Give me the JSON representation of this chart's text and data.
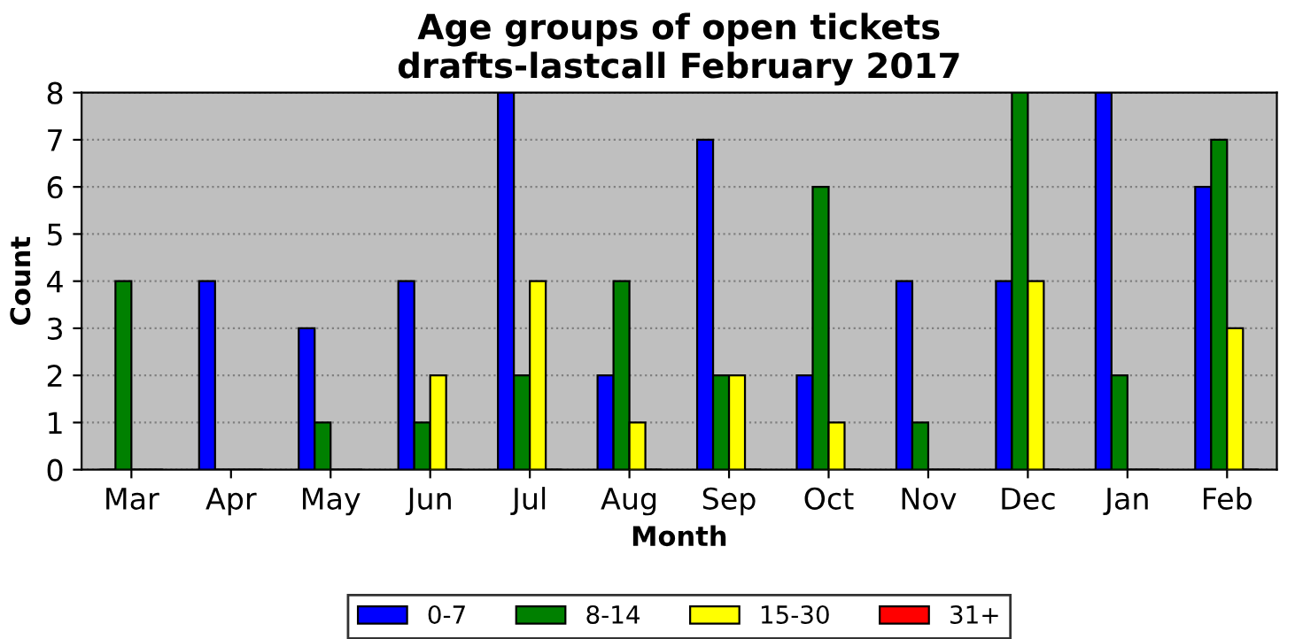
{
  "chart_data": {
    "type": "bar",
    "title": "Age groups of open tickets\ndrafts-lastcall February 2017",
    "xlabel": "Month",
    "ylabel": "Count",
    "categories": [
      "Mar",
      "Apr",
      "May",
      "Jun",
      "Jul",
      "Aug",
      "Sep",
      "Oct",
      "Nov",
      "Dec",
      "Jan",
      "Feb"
    ],
    "series": [
      {
        "name": "0-7",
        "color": "#0000ff",
        "values": [
          0,
          4,
          3,
          4,
          8,
          2,
          7,
          2,
          4,
          4,
          8,
          6
        ]
      },
      {
        "name": "8-14",
        "color": "#008000",
        "values": [
          4,
          0,
          1,
          1,
          2,
          4,
          2,
          6,
          1,
          8,
          2,
          7
        ]
      },
      {
        "name": "15-30",
        "color": "#ffff00",
        "values": [
          0,
          0,
          0,
          2,
          4,
          1,
          2,
          1,
          0,
          4,
          0,
          3
        ]
      },
      {
        "name": "31+",
        "color": "#ff0000",
        "values": [
          0,
          0,
          0,
          0,
          0,
          0,
          0,
          0,
          0,
          0,
          0,
          0
        ]
      }
    ],
    "ylim": [
      0,
      8
    ],
    "yticks": [
      0,
      1,
      2,
      3,
      4,
      5,
      6,
      7,
      8
    ],
    "grid": "y",
    "legend": "bottom"
  }
}
